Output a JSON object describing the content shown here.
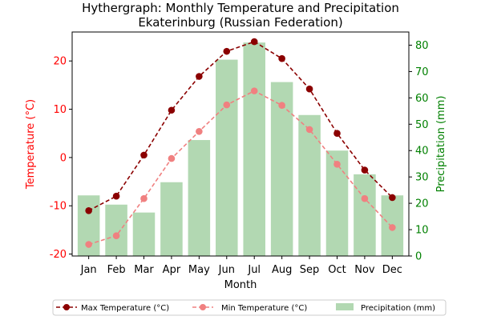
{
  "chart_data": {
    "type": "bar-line-combo",
    "title": "Hythergraph: Monthly Temperature and Precipitation",
    "subtitle": "Ekaterinburg (Russian Federation)",
    "xlabel": "Month",
    "ylabel_left": "Temperature (°C)",
    "ylabel_right": "Precipitation (mm)",
    "categories": [
      "Jan",
      "Feb",
      "Mar",
      "Apr",
      "May",
      "Jun",
      "Jul",
      "Aug",
      "Sep",
      "Oct",
      "Nov",
      "Dec"
    ],
    "ylim_left": [
      -20.4,
      26
    ],
    "yticks_left": [
      -20,
      -10,
      0,
      10,
      20
    ],
    "ylim_right": [
      0,
      85
    ],
    "yticks_right": [
      0,
      10,
      20,
      30,
      40,
      50,
      60,
      70,
      80
    ],
    "series": [
      {
        "name": "Max Temperature (°C)",
        "axis": "left",
        "style": "line",
        "color": "#8b0000",
        "values": [
          -11,
          -8,
          0.5,
          9.8,
          16.8,
          22,
          24,
          20.5,
          14.2,
          5,
          -2.6,
          -8.3
        ]
      },
      {
        "name": "Min Temperature (°C)",
        "axis": "left",
        "style": "line",
        "color": "#f08080",
        "values": [
          -18,
          -16.2,
          -8.5,
          -0.2,
          5.4,
          10.9,
          13.8,
          10.8,
          5.8,
          -1.4,
          -8.5,
          -14.5
        ]
      },
      {
        "name": "Precipitation (mm)",
        "axis": "right",
        "style": "bar",
        "color": "#b2d8b2",
        "values": [
          23,
          19.5,
          16.5,
          28,
          44,
          74.5,
          81,
          66,
          53.5,
          40,
          31,
          23
        ]
      }
    ],
    "legend_position": "bottom",
    "grid": false,
    "axis_colors": {
      "left": "#ff0000",
      "right": "#008000"
    }
  }
}
